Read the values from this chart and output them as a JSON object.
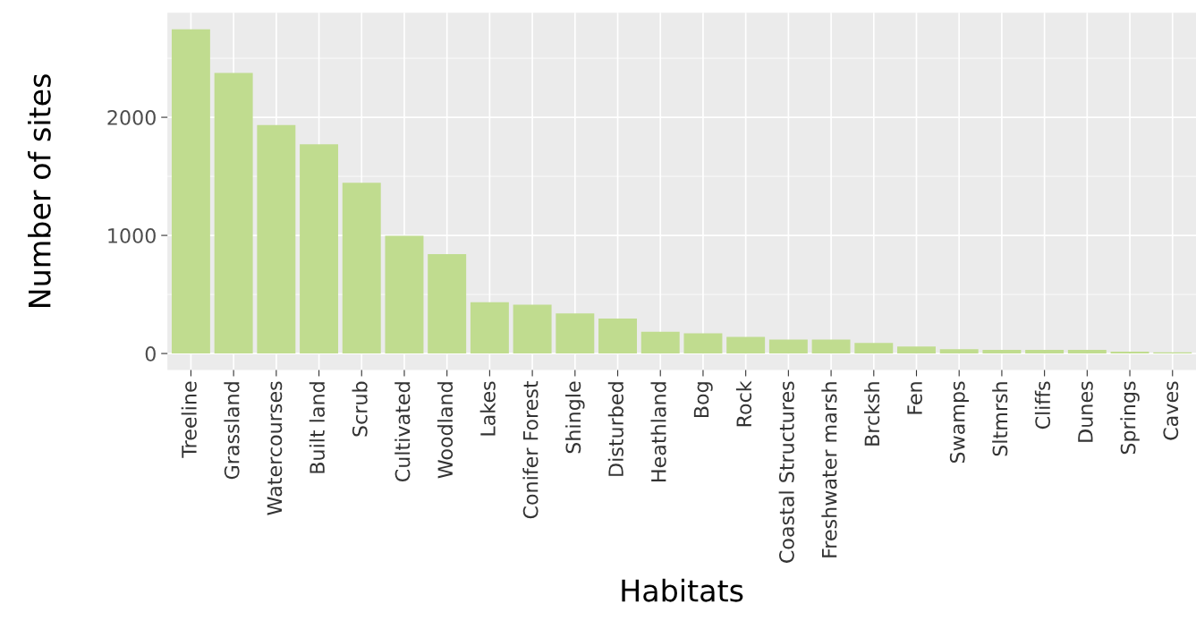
{
  "chart_data": {
    "type": "bar",
    "xlabel": "Habitats",
    "ylabel": "Number of sites",
    "categories": [
      "Treeline",
      "Grassland",
      "Watercourses",
      "Built land",
      "Scrub",
      "Cultivated",
      "Woodland",
      "Lakes",
      "Conifer Forest",
      "Shingle",
      "Disturbed",
      "Heathland",
      "Bog",
      "Rock",
      "Coastal Structures",
      "Freshwater marsh",
      "Brcksh",
      "Fen",
      "Swamps",
      "Sltmrsh",
      "Cliffs",
      "Dunes",
      "Springs",
      "Caves"
    ],
    "values": [
      2745,
      2376,
      1934,
      1771,
      1446,
      996,
      841,
      435,
      413,
      339,
      295,
      185,
      170,
      140,
      118,
      118,
      89,
      59,
      37,
      30,
      30,
      30,
      15,
      10
    ],
    "color": "#c0dc8f",
    "ylim": [
      -140,
      2885
    ],
    "yticks": [
      0,
      1000,
      2000
    ],
    "grid": true
  }
}
